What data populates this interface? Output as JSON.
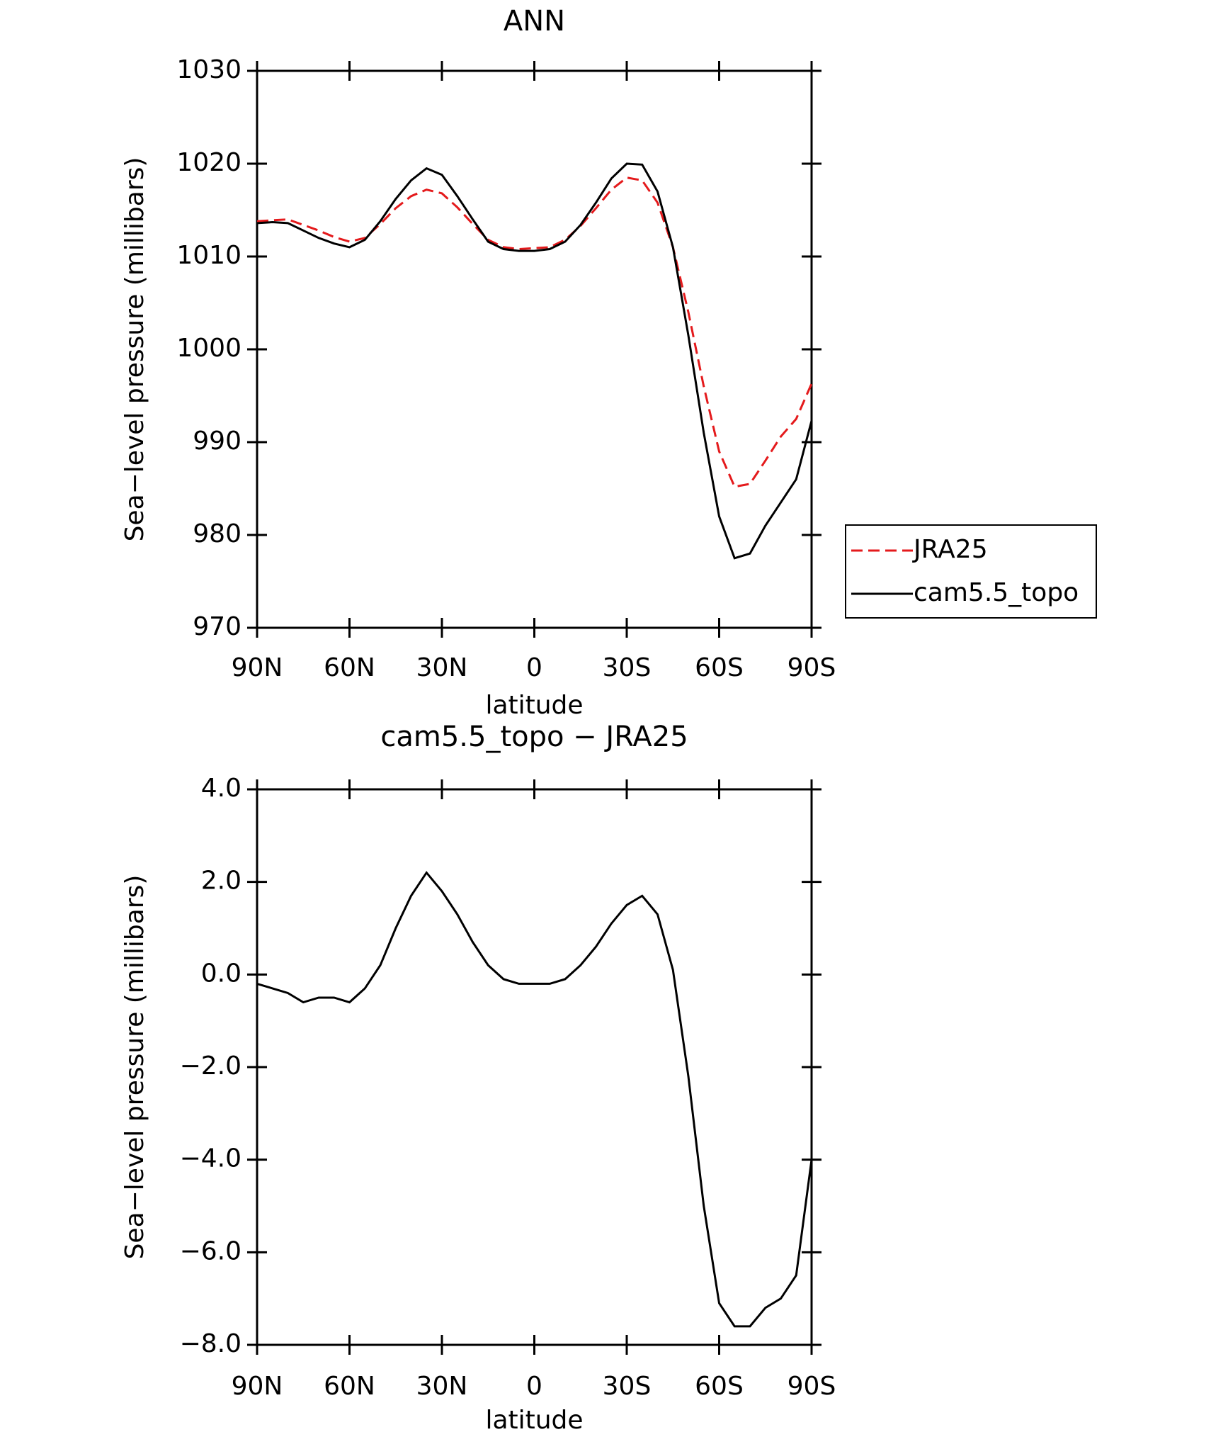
{
  "chart_data": [
    {
      "type": "line",
      "title": "ANN",
      "xlabel": "latitude",
      "ylabel": "Sea−level pressure (millibars)",
      "x": [
        90,
        85,
        80,
        75,
        70,
        65,
        60,
        55,
        50,
        45,
        40,
        35,
        30,
        25,
        20,
        15,
        10,
        5,
        0,
        -5,
        -10,
        -15,
        -20,
        -25,
        -30,
        -35,
        -40,
        -45,
        -50,
        -55,
        -60,
        -65,
        -70,
        -75,
        -80,
        -85,
        -90
      ],
      "xlim": [
        90,
        -90
      ],
      "xticks": [
        {
          "value": 90,
          "label": "90N"
        },
        {
          "value": 60,
          "label": "60N"
        },
        {
          "value": 30,
          "label": "30N"
        },
        0,
        {
          "value": -30,
          "label": "30S"
        },
        {
          "value": -60,
          "label": "60S"
        },
        {
          "value": -90,
          "label": "90S"
        }
      ],
      "ylim": [
        970,
        1030
      ],
      "yticks": [
        970,
        980,
        990,
        1000,
        1010,
        1020,
        1030
      ],
      "series": [
        {
          "name": "JRA25",
          "color": "#e41a1c",
          "line_style": "dashed",
          "values": [
            1013.8,
            1013.9,
            1014.0,
            1013.4,
            1012.8,
            1012.1,
            1011.6,
            1012.0,
            1013.5,
            1015.2,
            1016.5,
            1017.2,
            1016.8,
            1015.3,
            1013.5,
            1011.8,
            1011.0,
            1010.8,
            1010.9,
            1011.0,
            1011.8,
            1013.3,
            1015.2,
            1017.2,
            1018.5,
            1018.2,
            1015.8,
            1011.0,
            1004.0,
            996.0,
            989.0,
            985.2,
            985.5,
            988.0,
            990.6,
            992.5,
            996.3
          ]
        },
        {
          "name": "cam5.5_topo",
          "color": "#000000",
          "line_style": "solid",
          "values": [
            1013.6,
            1013.7,
            1013.6,
            1012.8,
            1012.0,
            1011.4,
            1011.0,
            1011.8,
            1013.8,
            1016.2,
            1018.2,
            1019.5,
            1018.8,
            1016.5,
            1014.0,
            1011.6,
            1010.8,
            1010.6,
            1010.6,
            1010.8,
            1011.6,
            1013.4,
            1015.8,
            1018.4,
            1020.0,
            1019.9,
            1017.0,
            1011.0,
            1001.5,
            991.0,
            982.0,
            977.5,
            978.0,
            981.0,
            983.5,
            986.0,
            992.3
          ]
        }
      ]
    },
    {
      "type": "line",
      "title": "cam5.5_topo − JRA25",
      "xlabel": "latitude",
      "ylabel": "Sea−level pressure (millibars)",
      "x": [
        90,
        85,
        80,
        75,
        70,
        65,
        60,
        55,
        50,
        45,
        40,
        35,
        30,
        25,
        20,
        15,
        10,
        5,
        0,
        -5,
        -10,
        -15,
        -20,
        -25,
        -30,
        -35,
        -40,
        -45,
        -50,
        -55,
        -60,
        -65,
        -70,
        -75,
        -80,
        -85,
        -90
      ],
      "xlim": [
        90,
        -90
      ],
      "xticks": [
        {
          "value": 90,
          "label": "90N"
        },
        {
          "value": 60,
          "label": "60N"
        },
        {
          "value": 30,
          "label": "30N"
        },
        0,
        {
          "value": -30,
          "label": "30S"
        },
        {
          "value": -60,
          "label": "60S"
        },
        {
          "value": -90,
          "label": "90S"
        }
      ],
      "ylim": [
        -8,
        4
      ],
      "yticks": [
        {
          "value": -8,
          "label": "−8.0"
        },
        {
          "value": -6,
          "label": "−6.0"
        },
        {
          "value": -4,
          "label": "−4.0"
        },
        {
          "value": -2,
          "label": "−2.0"
        },
        {
          "value": 0,
          "label": "0.0"
        },
        {
          "value": 2,
          "label": "2.0"
        },
        {
          "value": 4,
          "label": "4.0"
        }
      ],
      "color": "#000000",
      "line_style": "solid",
      "values": [
        -0.2,
        -0.3,
        -0.4,
        -0.6,
        -0.5,
        -0.5,
        -0.6,
        -0.3,
        0.2,
        1.0,
        1.7,
        2.2,
        1.8,
        1.3,
        0.7,
        0.2,
        -0.1,
        -0.2,
        -0.2,
        -0.2,
        -0.1,
        0.2,
        0.6,
        1.1,
        1.5,
        1.7,
        1.3,
        0.1,
        -2.2,
        -5.0,
        -7.1,
        -7.6,
        -7.6,
        -7.2,
        -7.0,
        -6.5,
        -4.0
      ]
    }
  ]
}
